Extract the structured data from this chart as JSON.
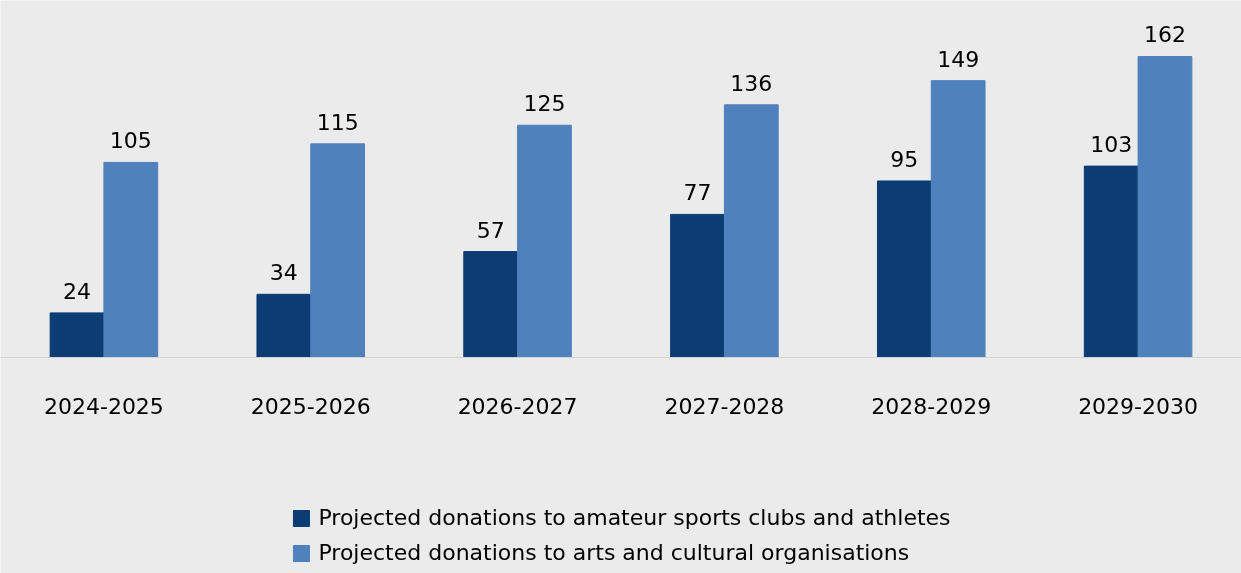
{
  "chart_data": {
    "type": "bar",
    "categories": [
      "2024-2025",
      "2025-2026",
      "2026-2027",
      "2027-2028",
      "2028-2029",
      "2029-2030"
    ],
    "series": [
      {
        "name": "Projected donations to amateur sports clubs and athletes",
        "color": "#0b3c74",
        "values": [
          24,
          34,
          57,
          77,
          95,
          103
        ]
      },
      {
        "name": "Projected donations to arts and cultural organisations",
        "color": "#4f81bd",
        "values": [
          105,
          115,
          125,
          136,
          149,
          162
        ]
      }
    ],
    "data_labels": true,
    "legend": "bottom",
    "grid": false
  }
}
